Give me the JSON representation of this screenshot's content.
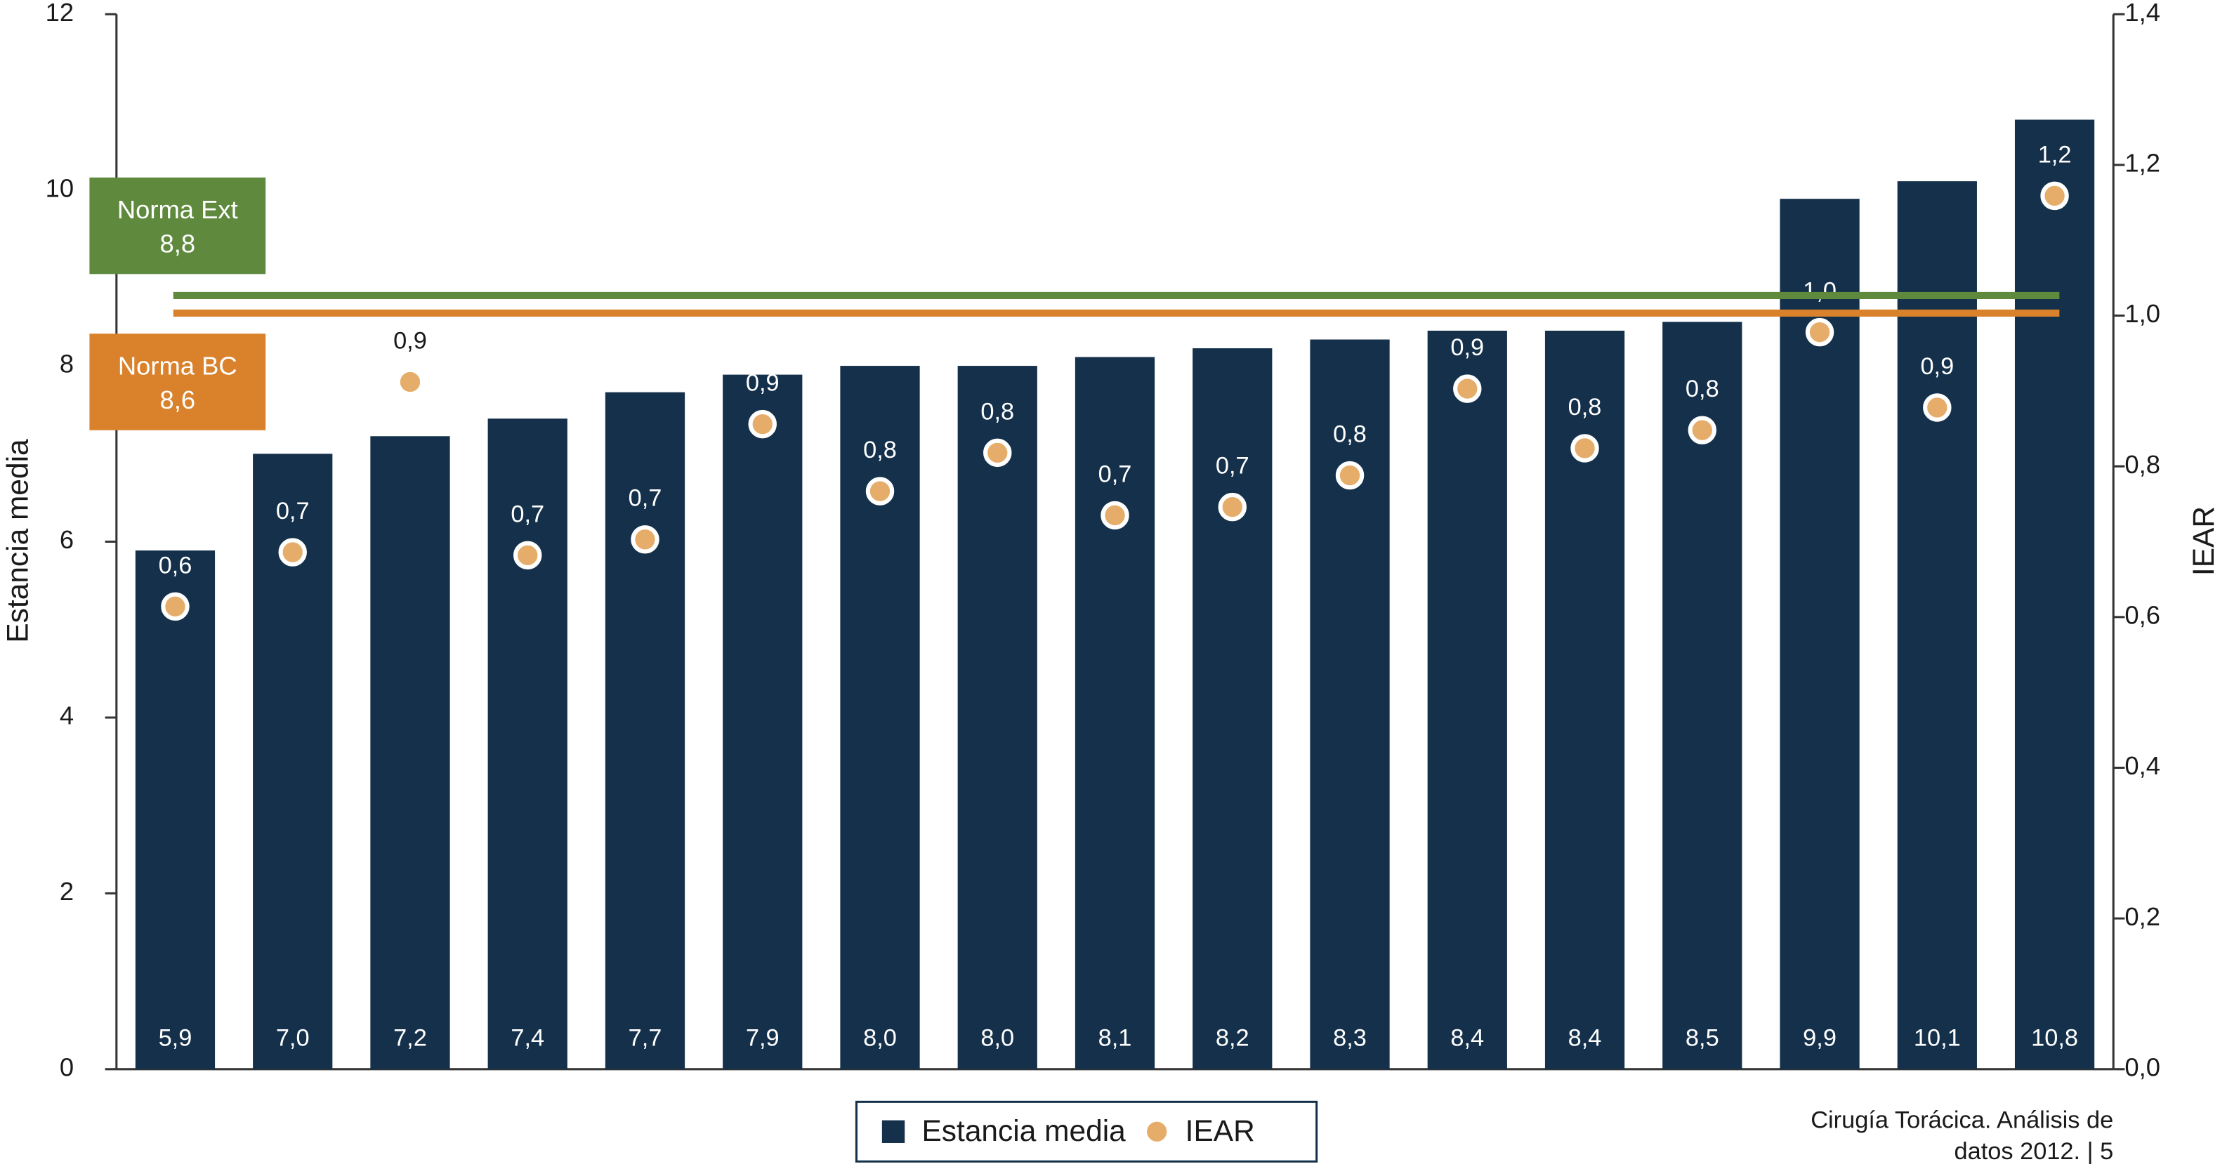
{
  "chart_data": {
    "type": "bar",
    "categories": [
      null,
      null,
      null,
      null,
      null,
      null,
      null,
      null,
      null,
      null,
      null,
      null,
      null,
      null,
      null,
      null,
      null
    ],
    "series": [
      {
        "name": "Estancia media",
        "type": "bar",
        "color": "#14304a",
        "values": [
          5.9,
          7.0,
          7.2,
          7.4,
          7.7,
          7.9,
          8.0,
          8.0,
          8.1,
          8.2,
          8.3,
          8.4,
          8.4,
          8.5,
          9.9,
          10.1,
          10.8
        ],
        "value_labels": [
          "5,9",
          "7,0",
          "7,2",
          "7,4",
          "7,7",
          "7,9",
          "8,0",
          "8,0",
          "8,1",
          "8,2",
          "8,3",
          "8,4",
          "8,4",
          "8,5",
          "9,9",
          "10,1",
          "10,8"
        ]
      },
      {
        "name": "IEAR",
        "type": "scatter",
        "axis": "y2",
        "color": "#e6ad6a",
        "values": [
          0.614,
          0.686,
          0.912,
          0.682,
          0.703,
          0.856,
          0.767,
          0.818,
          0.735,
          0.746,
          0.788,
          0.903,
          0.824,
          0.848,
          0.978,
          0.878,
          1.159
        ],
        "value_labels": [
          "0,6",
          "0,7",
          "0,9",
          "0,7",
          "0,7",
          "0,9",
          "0,8",
          "0,8",
          "0,7",
          "0,7",
          "0,8",
          "0,9",
          "0,8",
          "0,8",
          "1,0",
          "0,9",
          "1,2"
        ]
      }
    ],
    "reference_lines": [
      {
        "name": "Norma Ext",
        "value": 8.8,
        "value_label": "8,8",
        "color": "#5f8a3e"
      },
      {
        "name": "Norma BC",
        "value": 8.6,
        "value_label": "8,6",
        "color": "#d9822b"
      }
    ],
    "y_label": "Estancia media",
    "y2_label": "IEAR",
    "ylim": [
      0,
      12
    ],
    "yticks": [
      0,
      2,
      4,
      6,
      8,
      10,
      12
    ],
    "y2lim": [
      0,
      1.4
    ],
    "y2ticks": [
      {
        "value": 0,
        "label": "0,0"
      },
      {
        "value": 0.2,
        "label": "0,2"
      },
      {
        "value": 0.4,
        "label": "0,4"
      },
      {
        "value": 0.6,
        "label": "0,6"
      },
      {
        "value": 0.8,
        "label": "0,8"
      },
      {
        "value": 1.0,
        "label": "1,0"
      },
      {
        "value": 1.2,
        "label": "1,2"
      },
      {
        "value": 1.4,
        "label": "1,4"
      }
    ],
    "legend": "bottom",
    "source": [
      "Cirugía Torácica. Análisis de",
      "datos 2012. | 5"
    ]
  }
}
